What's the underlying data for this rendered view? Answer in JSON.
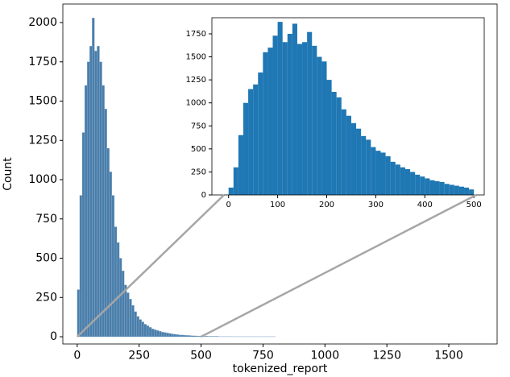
{
  "chart_data": [
    {
      "type": "histogram",
      "xlabel": "tokenized_report",
      "ylabel": "Count",
      "color": "#4a7eab",
      "edgecolor": "#9fbcd4",
      "bins": [
        0,
        10,
        20,
        30,
        40,
        50,
        60,
        70,
        80,
        90,
        100,
        110,
        120,
        130,
        140,
        150,
        160,
        170,
        180,
        190,
        200,
        210,
        220,
        230,
        240,
        250,
        260,
        270,
        280,
        290,
        300,
        310,
        320,
        330,
        340,
        350,
        360,
        370,
        380,
        390,
        400,
        410,
        420,
        430,
        440,
        450,
        460,
        470,
        480,
        490,
        500,
        510,
        520,
        530,
        540,
        550,
        560,
        570,
        580,
        590,
        600,
        610,
        620,
        630,
        640,
        650,
        660,
        670,
        680,
        690,
        700,
        710,
        720,
        730,
        740,
        750,
        760,
        770,
        780,
        790,
        800
      ],
      "counts": [
        300,
        900,
        1300,
        1600,
        1750,
        1850,
        2030,
        1820,
        1850,
        1750,
        1600,
        1450,
        1200,
        1050,
        900,
        700,
        600,
        500,
        420,
        330,
        280,
        240,
        200,
        160,
        130,
        110,
        95,
        80,
        70,
        60,
        50,
        45,
        40,
        35,
        30,
        27,
        24,
        21,
        18,
        16,
        14,
        12,
        11,
        10,
        9,
        8,
        7,
        6,
        5,
        5,
        4,
        4,
        4,
        3,
        3,
        3,
        3,
        2,
        2,
        2,
        2,
        2,
        2,
        1,
        1,
        1,
        1,
        1,
        1,
        1,
        1,
        1,
        1,
        1,
        1,
        1,
        1,
        1,
        1,
        1
      ],
      "xlim": [
        -58,
        1695
      ],
      "ylim": [
        -46,
        2118
      ],
      "xticks": [
        0,
        250,
        500,
        750,
        1000,
        1250,
        1500
      ],
      "yticks": [
        0,
        250,
        500,
        750,
        1000,
        1250,
        1500,
        1750,
        2000
      ]
    },
    {
      "type": "histogram",
      "color": "#1f77b4",
      "bins": [
        0,
        10,
        20,
        30,
        40,
        50,
        60,
        70,
        80,
        90,
        100,
        110,
        120,
        130,
        140,
        150,
        160,
        170,
        180,
        190,
        200,
        210,
        220,
        230,
        240,
        250,
        260,
        270,
        280,
        290,
        300,
        310,
        320,
        330,
        340,
        350,
        360,
        370,
        380,
        390,
        400,
        410,
        420,
        430,
        440,
        450,
        460,
        470,
        480,
        490,
        500
      ],
      "counts": [
        80,
        300,
        650,
        1000,
        1150,
        1200,
        1330,
        1550,
        1600,
        1730,
        1880,
        1660,
        1750,
        1860,
        1640,
        1660,
        1770,
        1620,
        1500,
        1450,
        1250,
        1120,
        1060,
        930,
        860,
        780,
        720,
        640,
        600,
        520,
        480,
        460,
        420,
        360,
        330,
        300,
        280,
        250,
        220,
        200,
        180,
        160,
        150,
        140,
        120,
        110,
        100,
        90,
        80,
        60
      ],
      "xlim": [
        -34,
        521
      ],
      "ylim": [
        0,
        1925
      ],
      "xticks": [
        0,
        100,
        200,
        300,
        400,
        500
      ],
      "yticks": [
        0,
        250,
        500,
        750,
        1000,
        1250,
        1500,
        1750
      ]
    }
  ]
}
